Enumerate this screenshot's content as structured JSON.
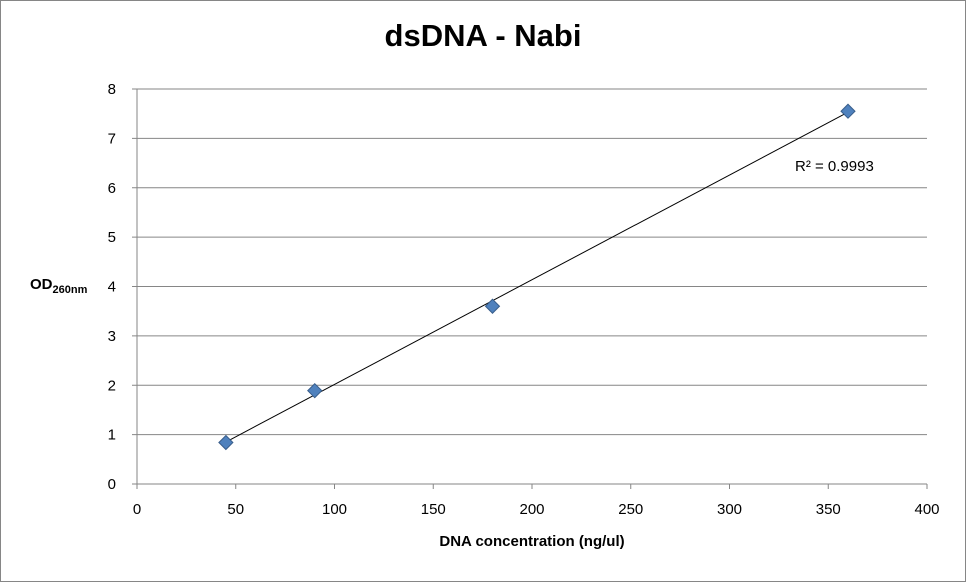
{
  "chart_data": {
    "type": "scatter",
    "title": "dsDNA - Nabi",
    "xlabel": "DNA concentration (ng/ul)",
    "ylabel": "OD",
    "ylabel_sub": "260nm",
    "xlim": [
      0,
      400
    ],
    "ylim": [
      0,
      8
    ],
    "x_ticks": [
      0,
      50,
      100,
      150,
      200,
      250,
      300,
      350,
      400
    ],
    "y_ticks": [
      0,
      1,
      2,
      3,
      4,
      5,
      6,
      7,
      8
    ],
    "grid": "horizontal",
    "series": [
      {
        "x": [
          45,
          90,
          180,
          360
        ],
        "y": [
          0.84,
          1.89,
          3.6,
          7.55
        ],
        "marker": "diamond",
        "color": "#4F81BD"
      }
    ],
    "trendline": {
      "type": "linear",
      "x": [
        45,
        360
      ],
      "y": [
        0.85,
        7.53
      ],
      "annotation": "R² = 0.9993"
    }
  }
}
